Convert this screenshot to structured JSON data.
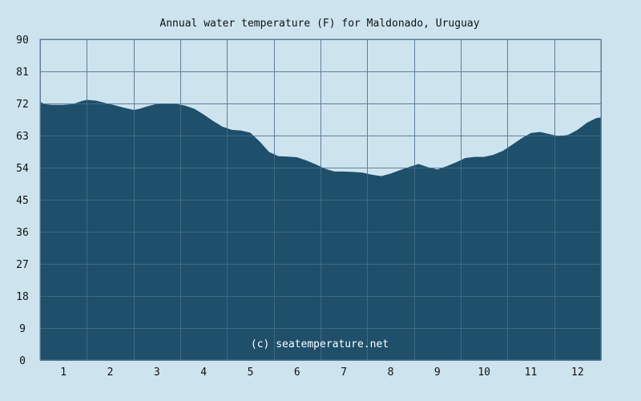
{
  "chart_data": {
    "type": "area",
    "title": "Annual water temperature (F) for Maldonado, Uruguay",
    "watermark": "(c) seatemperature.net",
    "xlabel": "",
    "ylabel": "",
    "x_ticks": [
      "1",
      "2",
      "3",
      "4",
      "5",
      "6",
      "7",
      "8",
      "9",
      "10",
      "11",
      "12"
    ],
    "y_ticks": [
      "0",
      "9",
      "18",
      "27",
      "36",
      "45",
      "54",
      "63",
      "72",
      "81",
      "90"
    ],
    "ylim": [
      0,
      90
    ],
    "xlim": [
      0.5,
      12.5
    ],
    "grid": true,
    "colors": {
      "area": "#1e4f6b",
      "background": "#cde4ef",
      "grid": "#5f7f97"
    },
    "series": [
      {
        "x": [
          0.5,
          0.6,
          0.75,
          1.0,
          1.2,
          1.4,
          1.5,
          1.7,
          1.9,
          2.1,
          2.3,
          2.5,
          2.6,
          2.8,
          3.0,
          3.2,
          3.4,
          3.6,
          3.8,
          4.0,
          4.2,
          4.4,
          4.6,
          4.8,
          5.0,
          5.2,
          5.4,
          5.6,
          5.8,
          6.0,
          6.2,
          6.4,
          6.6,
          6.8,
          7.0,
          7.2,
          7.4,
          7.6,
          7.8,
          8.0,
          8.2,
          8.4,
          8.6,
          8.8,
          9.0,
          9.2,
          9.4,
          9.6,
          9.8,
          10.0,
          10.2,
          10.4,
          10.6,
          10.8,
          11.0,
          11.2,
          11.4,
          11.6,
          11.8,
          12.0,
          12.2,
          12.4,
          12.5
        ],
        "values": [
          72.5,
          71.8,
          71.6,
          71.6,
          71.8,
          72.7,
          73.0,
          72.8,
          72.1,
          71.5,
          70.8,
          70.2,
          70.4,
          71.2,
          71.9,
          72.0,
          71.9,
          71.4,
          70.5,
          68.9,
          67.1,
          65.5,
          64.6,
          64.4,
          63.8,
          61.3,
          58.4,
          57.2,
          57.1,
          56.9,
          56.0,
          54.9,
          53.7,
          52.9,
          52.9,
          52.8,
          52.6,
          52.0,
          51.6,
          52.3,
          53.3,
          54.2,
          55.0,
          54.1,
          53.5,
          54.4,
          55.5,
          56.7,
          57.0,
          57.0,
          57.6,
          58.7,
          60.4,
          62.2,
          63.7,
          64.0,
          63.4,
          62.8,
          63.2,
          64.6,
          66.6,
          67.9,
          68.1
        ]
      }
    ]
  }
}
